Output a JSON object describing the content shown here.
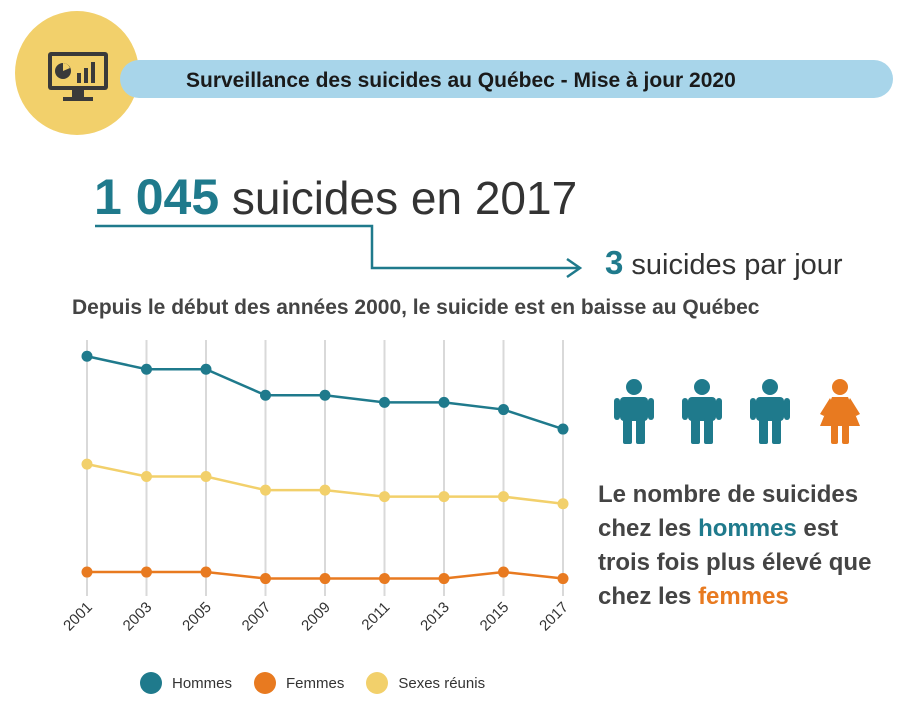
{
  "header": {
    "title": "Surveillance des suicides au Québec - Mise à jour 2020",
    "logo_icon": "monitor-chart-icon"
  },
  "headline": {
    "number": "1 045",
    "text": " suicides en 2017"
  },
  "per_day": {
    "number": "3",
    "text": " suicides par jour"
  },
  "subtitle": "Depuis le début des années 2000, le suicide est en baisse au Québec",
  "colors": {
    "hommes": "#1f7a8c",
    "femmes": "#e87a20",
    "sexes": "#f2d06b",
    "accent": "#1f7a8c"
  },
  "chart_data": {
    "type": "line",
    "x": [
      "2001",
      "2003",
      "2005",
      "2007",
      "2009",
      "2011",
      "2013",
      "2015",
      "2017"
    ],
    "series": [
      {
        "name": "Hommes",
        "color": "#1f7a8c",
        "values": [
          1000,
          960,
          960,
          880,
          880,
          858,
          858,
          836,
          776
        ]
      },
      {
        "name": "Femmes",
        "color": "#e87a20",
        "values": [
          336,
          336,
          336,
          316,
          316,
          316,
          316,
          336,
          316
        ]
      },
      {
        "name": "Sexes réunis",
        "color": "#f2d06b",
        "values": [
          668,
          630,
          630,
          588,
          588,
          568,
          568,
          568,
          546
        ]
      }
    ],
    "ylim": [
      250,
      1050
    ],
    "grid": "vertical"
  },
  "legend": {
    "hommes": "Hommes",
    "femmes": "Femmes",
    "sexes": "Sexes réunis"
  },
  "people_icons": [
    "man-icon",
    "man-icon",
    "man-icon",
    "woman-icon"
  ],
  "info": {
    "line1": "Le nombre de suicides",
    "line2a": "chez les ",
    "hommes": "hommes",
    "line2b": " est",
    "line3": "trois fois plus élevé que",
    "line4a": "chez les ",
    "femmes": "femmes"
  }
}
